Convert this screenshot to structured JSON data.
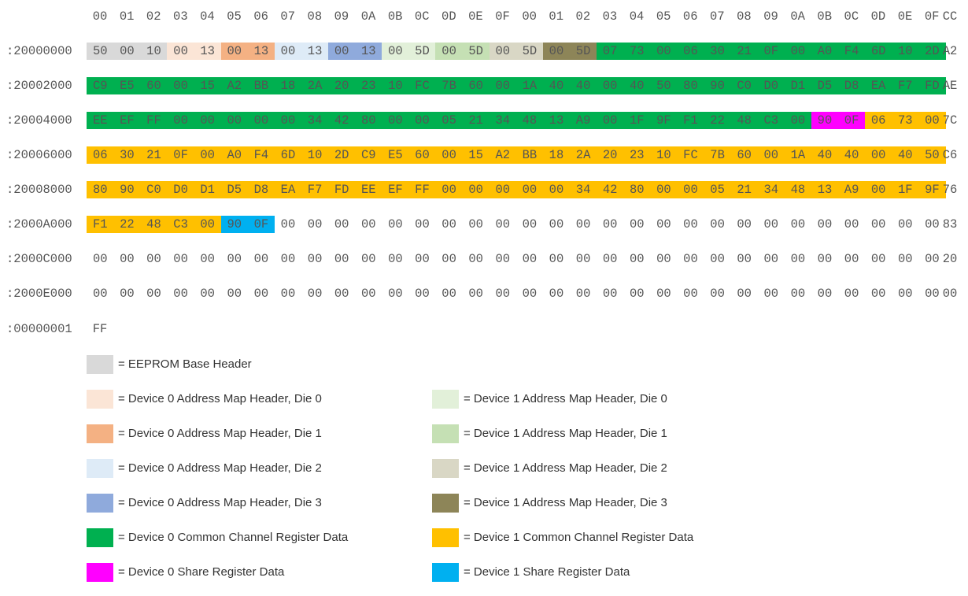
{
  "column_headers": [
    "00",
    "01",
    "02",
    "03",
    "04",
    "05",
    "06",
    "07",
    "08",
    "09",
    "0A",
    "0B",
    "0C",
    "0D",
    "0E",
    "0F",
    "00",
    "01",
    "02",
    "03",
    "04",
    "05",
    "06",
    "07",
    "08",
    "09",
    "0A",
    "0B",
    "0C",
    "0D",
    "0E",
    "0F",
    "CC"
  ],
  "rows": [
    {
      "addr": ":20000000",
      "bytes": [
        "50",
        "00",
        "10",
        "00",
        "13",
        "00",
        "13",
        "00",
        "13",
        "00",
        "13",
        "00",
        "5D",
        "00",
        "5D",
        "00",
        "5D",
        "00",
        "5D",
        "07",
        "73",
        "00",
        "06",
        "30",
        "21",
        "0F",
        "00",
        "A0",
        "F4",
        "6D",
        "10",
        "2D"
      ],
      "cats": [
        "base",
        "base",
        "base",
        "d0h0",
        "d0h0",
        "d0h1",
        "d0h1",
        "d0h2",
        "d0h2",
        "d0h3",
        "d0h3",
        "d1h0",
        "d1h0",
        "d1h1",
        "d1h1",
        "d1h2",
        "d1h2",
        "d1h3",
        "d1h3",
        "d0c",
        "d0c",
        "d0c",
        "d0c",
        "d0c",
        "d0c",
        "d0c",
        "d0c",
        "d0c",
        "d0c",
        "d0c",
        "d0c",
        "d0c"
      ],
      "checksum": "A2"
    },
    {
      "addr": ":20002000",
      "bytes": [
        "C9",
        "E5",
        "60",
        "00",
        "15",
        "A2",
        "BB",
        "18",
        "2A",
        "20",
        "23",
        "10",
        "FC",
        "7B",
        "60",
        "00",
        "1A",
        "40",
        "40",
        "00",
        "40",
        "50",
        "80",
        "90",
        "C0",
        "D0",
        "D1",
        "D5",
        "D8",
        "EA",
        "F7",
        "FD"
      ],
      "cats": [
        "d0c",
        "d0c",
        "d0c",
        "d0c",
        "d0c",
        "d0c",
        "d0c",
        "d0c",
        "d0c",
        "d0c",
        "d0c",
        "d0c",
        "d0c",
        "d0c",
        "d0c",
        "d0c",
        "d0c",
        "d0c",
        "d0c",
        "d0c",
        "d0c",
        "d0c",
        "d0c",
        "d0c",
        "d0c",
        "d0c",
        "d0c",
        "d0c",
        "d0c",
        "d0c",
        "d0c",
        "d0c"
      ],
      "checksum": "AE"
    },
    {
      "addr": ":20004000",
      "bytes": [
        "EE",
        "EF",
        "FF",
        "00",
        "00",
        "00",
        "00",
        "00",
        "34",
        "42",
        "80",
        "00",
        "00",
        "05",
        "21",
        "34",
        "48",
        "13",
        "A9",
        "00",
        "1F",
        "9F",
        "F1",
        "22",
        "48",
        "C3",
        "00",
        "90",
        "0F",
        "06",
        "73",
        "00"
      ],
      "cats": [
        "d0c",
        "d0c",
        "d0c",
        "d0c",
        "d0c",
        "d0c",
        "d0c",
        "d0c",
        "d0c",
        "d0c",
        "d0c",
        "d0c",
        "d0c",
        "d0c",
        "d0c",
        "d0c",
        "d0c",
        "d0c",
        "d0c",
        "d0c",
        "d0c",
        "d0c",
        "d0c",
        "d0c",
        "d0c",
        "d0c",
        "d0c",
        "d0s",
        "d0s",
        "d1c",
        "d1c",
        "d1c"
      ],
      "checksum": "7C"
    },
    {
      "addr": ":20006000",
      "bytes": [
        "06",
        "30",
        "21",
        "0F",
        "00",
        "A0",
        "F4",
        "6D",
        "10",
        "2D",
        "C9",
        "E5",
        "60",
        "00",
        "15",
        "A2",
        "BB",
        "18",
        "2A",
        "20",
        "23",
        "10",
        "FC",
        "7B",
        "60",
        "00",
        "1A",
        "40",
        "40",
        "00",
        "40",
        "50"
      ],
      "cats": [
        "d1c",
        "d1c",
        "d1c",
        "d1c",
        "d1c",
        "d1c",
        "d1c",
        "d1c",
        "d1c",
        "d1c",
        "d1c",
        "d1c",
        "d1c",
        "d1c",
        "d1c",
        "d1c",
        "d1c",
        "d1c",
        "d1c",
        "d1c",
        "d1c",
        "d1c",
        "d1c",
        "d1c",
        "d1c",
        "d1c",
        "d1c",
        "d1c",
        "d1c",
        "d1c",
        "d1c",
        "d1c"
      ],
      "checksum": "C6"
    },
    {
      "addr": ":20008000",
      "bytes": [
        "80",
        "90",
        "C0",
        "D0",
        "D1",
        "D5",
        "D8",
        "EA",
        "F7",
        "FD",
        "EE",
        "EF",
        "FF",
        "00",
        "00",
        "00",
        "00",
        "00",
        "34",
        "42",
        "80",
        "00",
        "00",
        "05",
        "21",
        "34",
        "48",
        "13",
        "A9",
        "00",
        "1F",
        "9F"
      ],
      "cats": [
        "d1c",
        "d1c",
        "d1c",
        "d1c",
        "d1c",
        "d1c",
        "d1c",
        "d1c",
        "d1c",
        "d1c",
        "d1c",
        "d1c",
        "d1c",
        "d1c",
        "d1c",
        "d1c",
        "d1c",
        "d1c",
        "d1c",
        "d1c",
        "d1c",
        "d1c",
        "d1c",
        "d1c",
        "d1c",
        "d1c",
        "d1c",
        "d1c",
        "d1c",
        "d1c",
        "d1c",
        "d1c"
      ],
      "checksum": "76"
    },
    {
      "addr": ":2000A000",
      "bytes": [
        "F1",
        "22",
        "48",
        "C3",
        "00",
        "90",
        "0F",
        "00",
        "00",
        "00",
        "00",
        "00",
        "00",
        "00",
        "00",
        "00",
        "00",
        "00",
        "00",
        "00",
        "00",
        "00",
        "00",
        "00",
        "00",
        "00",
        "00",
        "00",
        "00",
        "00",
        "00",
        "00"
      ],
      "cats": [
        "d1c",
        "d1c",
        "d1c",
        "d1c",
        "d1c",
        "d1s",
        "d1s",
        "",
        "",
        "",
        "",
        "",
        "",
        "",
        "",
        "",
        "",
        "",
        "",
        "",
        "",
        "",
        "",
        "",
        "",
        "",
        "",
        "",
        "",
        "",
        "",
        ""
      ],
      "checksum": "83"
    },
    {
      "addr": ":2000C000",
      "bytes": [
        "00",
        "00",
        "00",
        "00",
        "00",
        "00",
        "00",
        "00",
        "00",
        "00",
        "00",
        "00",
        "00",
        "00",
        "00",
        "00",
        "00",
        "00",
        "00",
        "00",
        "00",
        "00",
        "00",
        "00",
        "00",
        "00",
        "00",
        "00",
        "00",
        "00",
        "00",
        "00"
      ],
      "cats": [
        "",
        "",
        "",
        "",
        "",
        "",
        "",
        "",
        "",
        "",
        "",
        "",
        "",
        "",
        "",
        "",
        "",
        "",
        "",
        "",
        "",
        "",
        "",
        "",
        "",
        "",
        "",
        "",
        "",
        "",
        "",
        ""
      ],
      "checksum": "20"
    },
    {
      "addr": ":2000E000",
      "bytes": [
        "00",
        "00",
        "00",
        "00",
        "00",
        "00",
        "00",
        "00",
        "00",
        "00",
        "00",
        "00",
        "00",
        "00",
        "00",
        "00",
        "00",
        "00",
        "00",
        "00",
        "00",
        "00",
        "00",
        "00",
        "00",
        "00",
        "00",
        "00",
        "00",
        "00",
        "00",
        "00"
      ],
      "cats": [
        "",
        "",
        "",
        "",
        "",
        "",
        "",
        "",
        "",
        "",
        "",
        "",
        "",
        "",
        "",
        "",
        "",
        "",
        "",
        "",
        "",
        "",
        "",
        "",
        "",
        "",
        "",
        "",
        "",
        "",
        "",
        ""
      ],
      "checksum": "00"
    }
  ],
  "eof_record": {
    "addr": ":00000001",
    "checksum": "FF"
  },
  "category_colors": {
    "base": "#d9d9d9",
    "d0h0": "#fbe5d6",
    "d0h1": "#f4b183",
    "d0h2": "#deebf7",
    "d0h3": "#8faadc",
    "d1h0": "#e2f0d9",
    "d1h1": "#c5e0b4",
    "d1h2": "#d9d7c5",
    "d1h3": "#8d8558",
    "d0c": "#00b050",
    "d1c": "#ffc000",
    "d0s": "#ff00ff",
    "d1s": "#00b0f0"
  },
  "legend": [
    {
      "key": "base",
      "label": "= EEPROM Base Header"
    },
    {
      "key": "d0h0",
      "label": "= Device 0 Address Map Header, Die 0"
    },
    {
      "key": "d1h0",
      "label": "= Device 1 Address Map Header, Die 0"
    },
    {
      "key": "d0h1",
      "label": "= Device 0 Address Map Header, Die 1"
    },
    {
      "key": "d1h1",
      "label": "= Device 1 Address Map Header, Die 1"
    },
    {
      "key": "d0h2",
      "label": "= Device 0 Address Map Header, Die 2"
    },
    {
      "key": "d1h2",
      "label": "= Device 1 Address Map Header, Die 2"
    },
    {
      "key": "d0h3",
      "label": "= Device 0 Address Map Header, Die 3"
    },
    {
      "key": "d1h3",
      "label": "= Device 1 Address Map Header, Die 3"
    },
    {
      "key": "d0c",
      "label": "= Device 0 Common Channel Register Data"
    },
    {
      "key": "d1c",
      "label": "= Device 1 Common Channel Register Data"
    },
    {
      "key": "d0s",
      "label": "= Device 0 Share Register Data"
    },
    {
      "key": "d1s",
      "label": "= Device 1 Share Register Data"
    }
  ]
}
